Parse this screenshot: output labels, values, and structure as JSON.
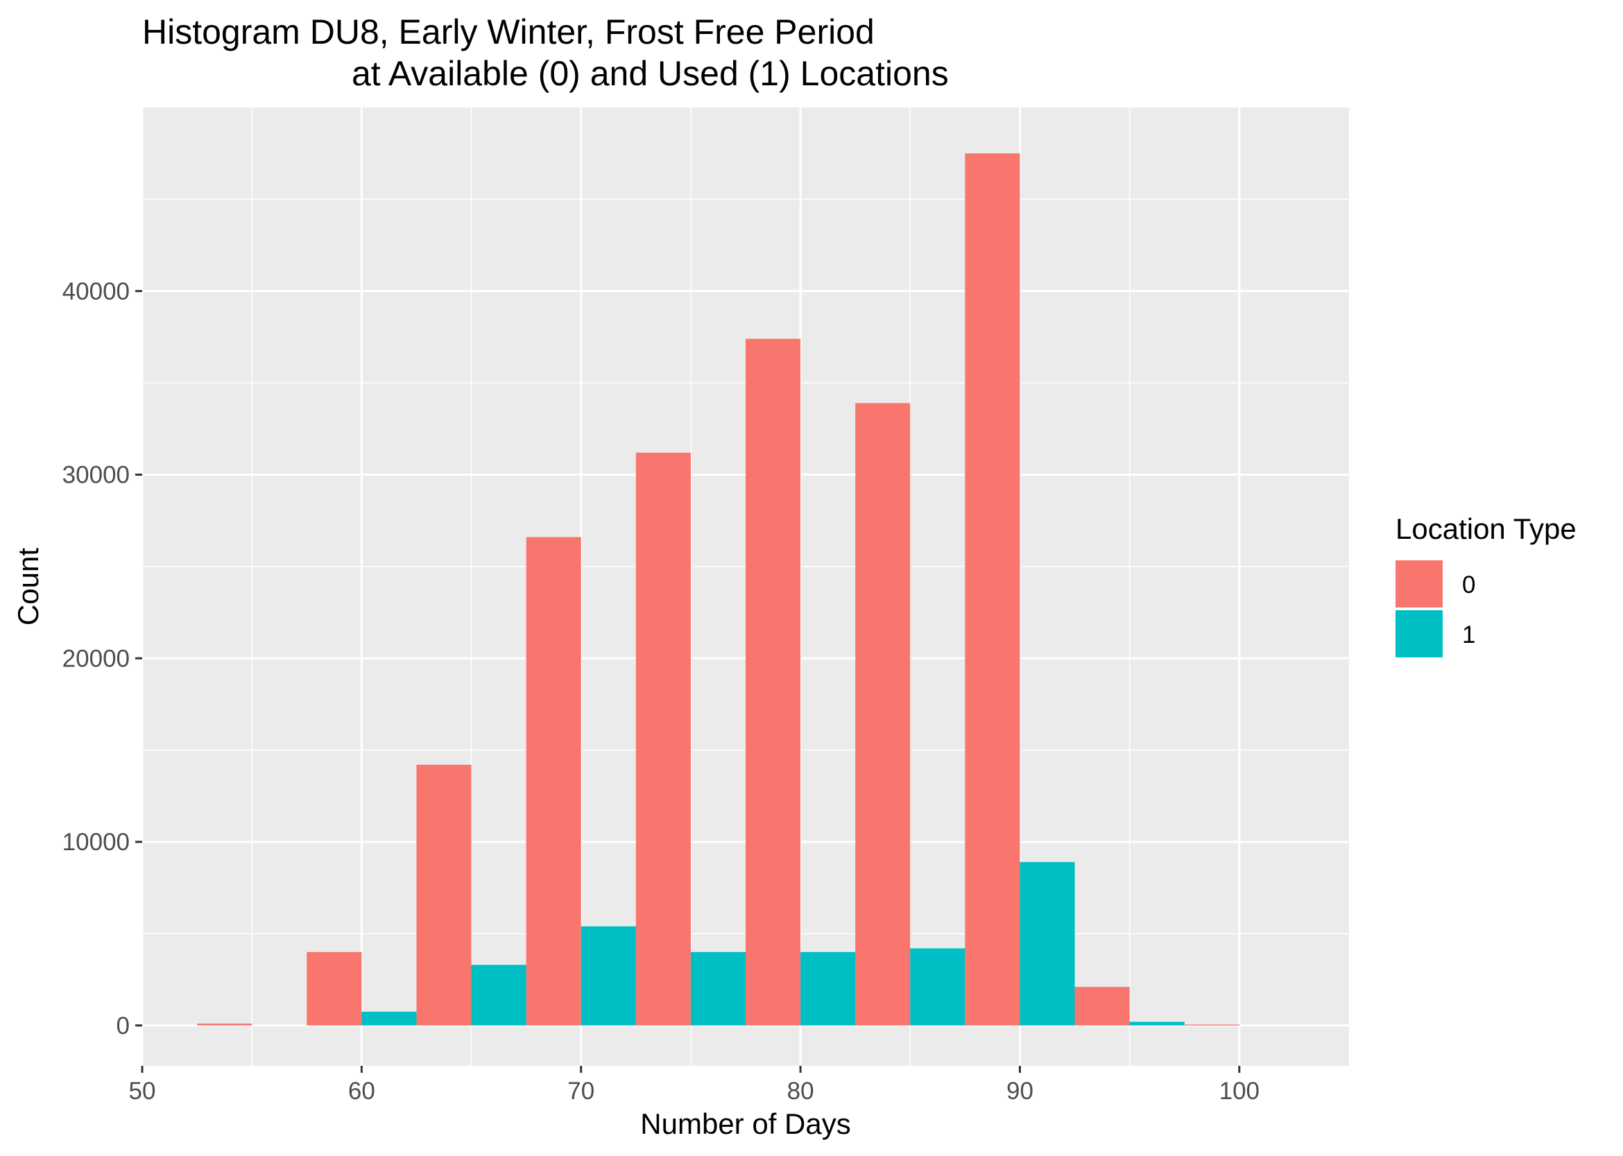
{
  "chart_data": {
    "type": "bar",
    "title": "Histogram DU8, Early Winter, Frost Free Period",
    "subtitle": "at Available (0) and Used (1) Locations",
    "xlabel": "Number of Days",
    "ylabel": "Count",
    "xlim": [
      50,
      105
    ],
    "ylim": [
      -2200,
      50000
    ],
    "x_ticks": [
      50,
      60,
      70,
      80,
      90,
      100
    ],
    "x_tick_labels": [
      "50",
      "60",
      "70",
      "80",
      "90",
      "100"
    ],
    "x_minor_ticks": [
      55,
      65,
      75,
      85,
      95
    ],
    "y_ticks": [
      0,
      10000,
      20000,
      30000,
      40000
    ],
    "y_tick_labels": [
      "0",
      "10000",
      "20000",
      "30000",
      "40000"
    ],
    "y_minor_ticks": [
      5000,
      15000,
      25000,
      35000,
      45000
    ],
    "bin_width": 5,
    "bin_centers": [
      55,
      60,
      65,
      70,
      75,
      80,
      85,
      90,
      95,
      100
    ],
    "position": "dodge",
    "grid": true,
    "legend": {
      "title": "Location Type",
      "placement": "right"
    },
    "series": [
      {
        "name": "0",
        "color": "#F8766D",
        "values": [
          100,
          4000,
          14200,
          26600,
          31200,
          37400,
          33900,
          47500,
          2100,
          50
        ]
      },
      {
        "name": "1",
        "color": "#00BFC4",
        "values": [
          0,
          750,
          3300,
          5400,
          4000,
          4000,
          4200,
          8900,
          200,
          0
        ]
      }
    ],
    "panel_background": "#EBEBEB",
    "gridline_color": "#FFFFFF"
  }
}
